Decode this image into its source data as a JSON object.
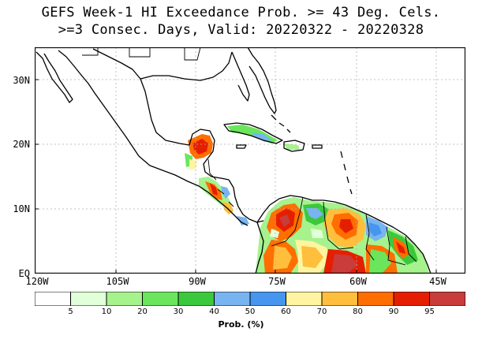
{
  "title": {
    "line1": "GEFS Week-1 HI Exceedance Prob. >= 43 Deg. Cels.",
    "line2": ">=3 Consec. Days, Valid: 20220322 - 20220328"
  },
  "map": {
    "lat_labels": [
      "30N",
      "20N",
      "10N",
      "EQ"
    ],
    "lon_labels": [
      "120W",
      "105W",
      "90W",
      "75W",
      "60W",
      "45W"
    ]
  },
  "colorbar": {
    "label": "Prob. (%)",
    "ticks": [
      "5",
      "10",
      "20",
      "30",
      "40",
      "50",
      "60",
      "70",
      "80",
      "90",
      "95"
    ],
    "colors": [
      "#ffffff",
      "#e1ffd9",
      "#a6f28d",
      "#6be65c",
      "#3cc83c",
      "#78b4f0",
      "#4696f0",
      "#fff5a0",
      "#ffbe3c",
      "#ff6e00",
      "#e61e00",
      "#c83c3c"
    ]
  }
}
